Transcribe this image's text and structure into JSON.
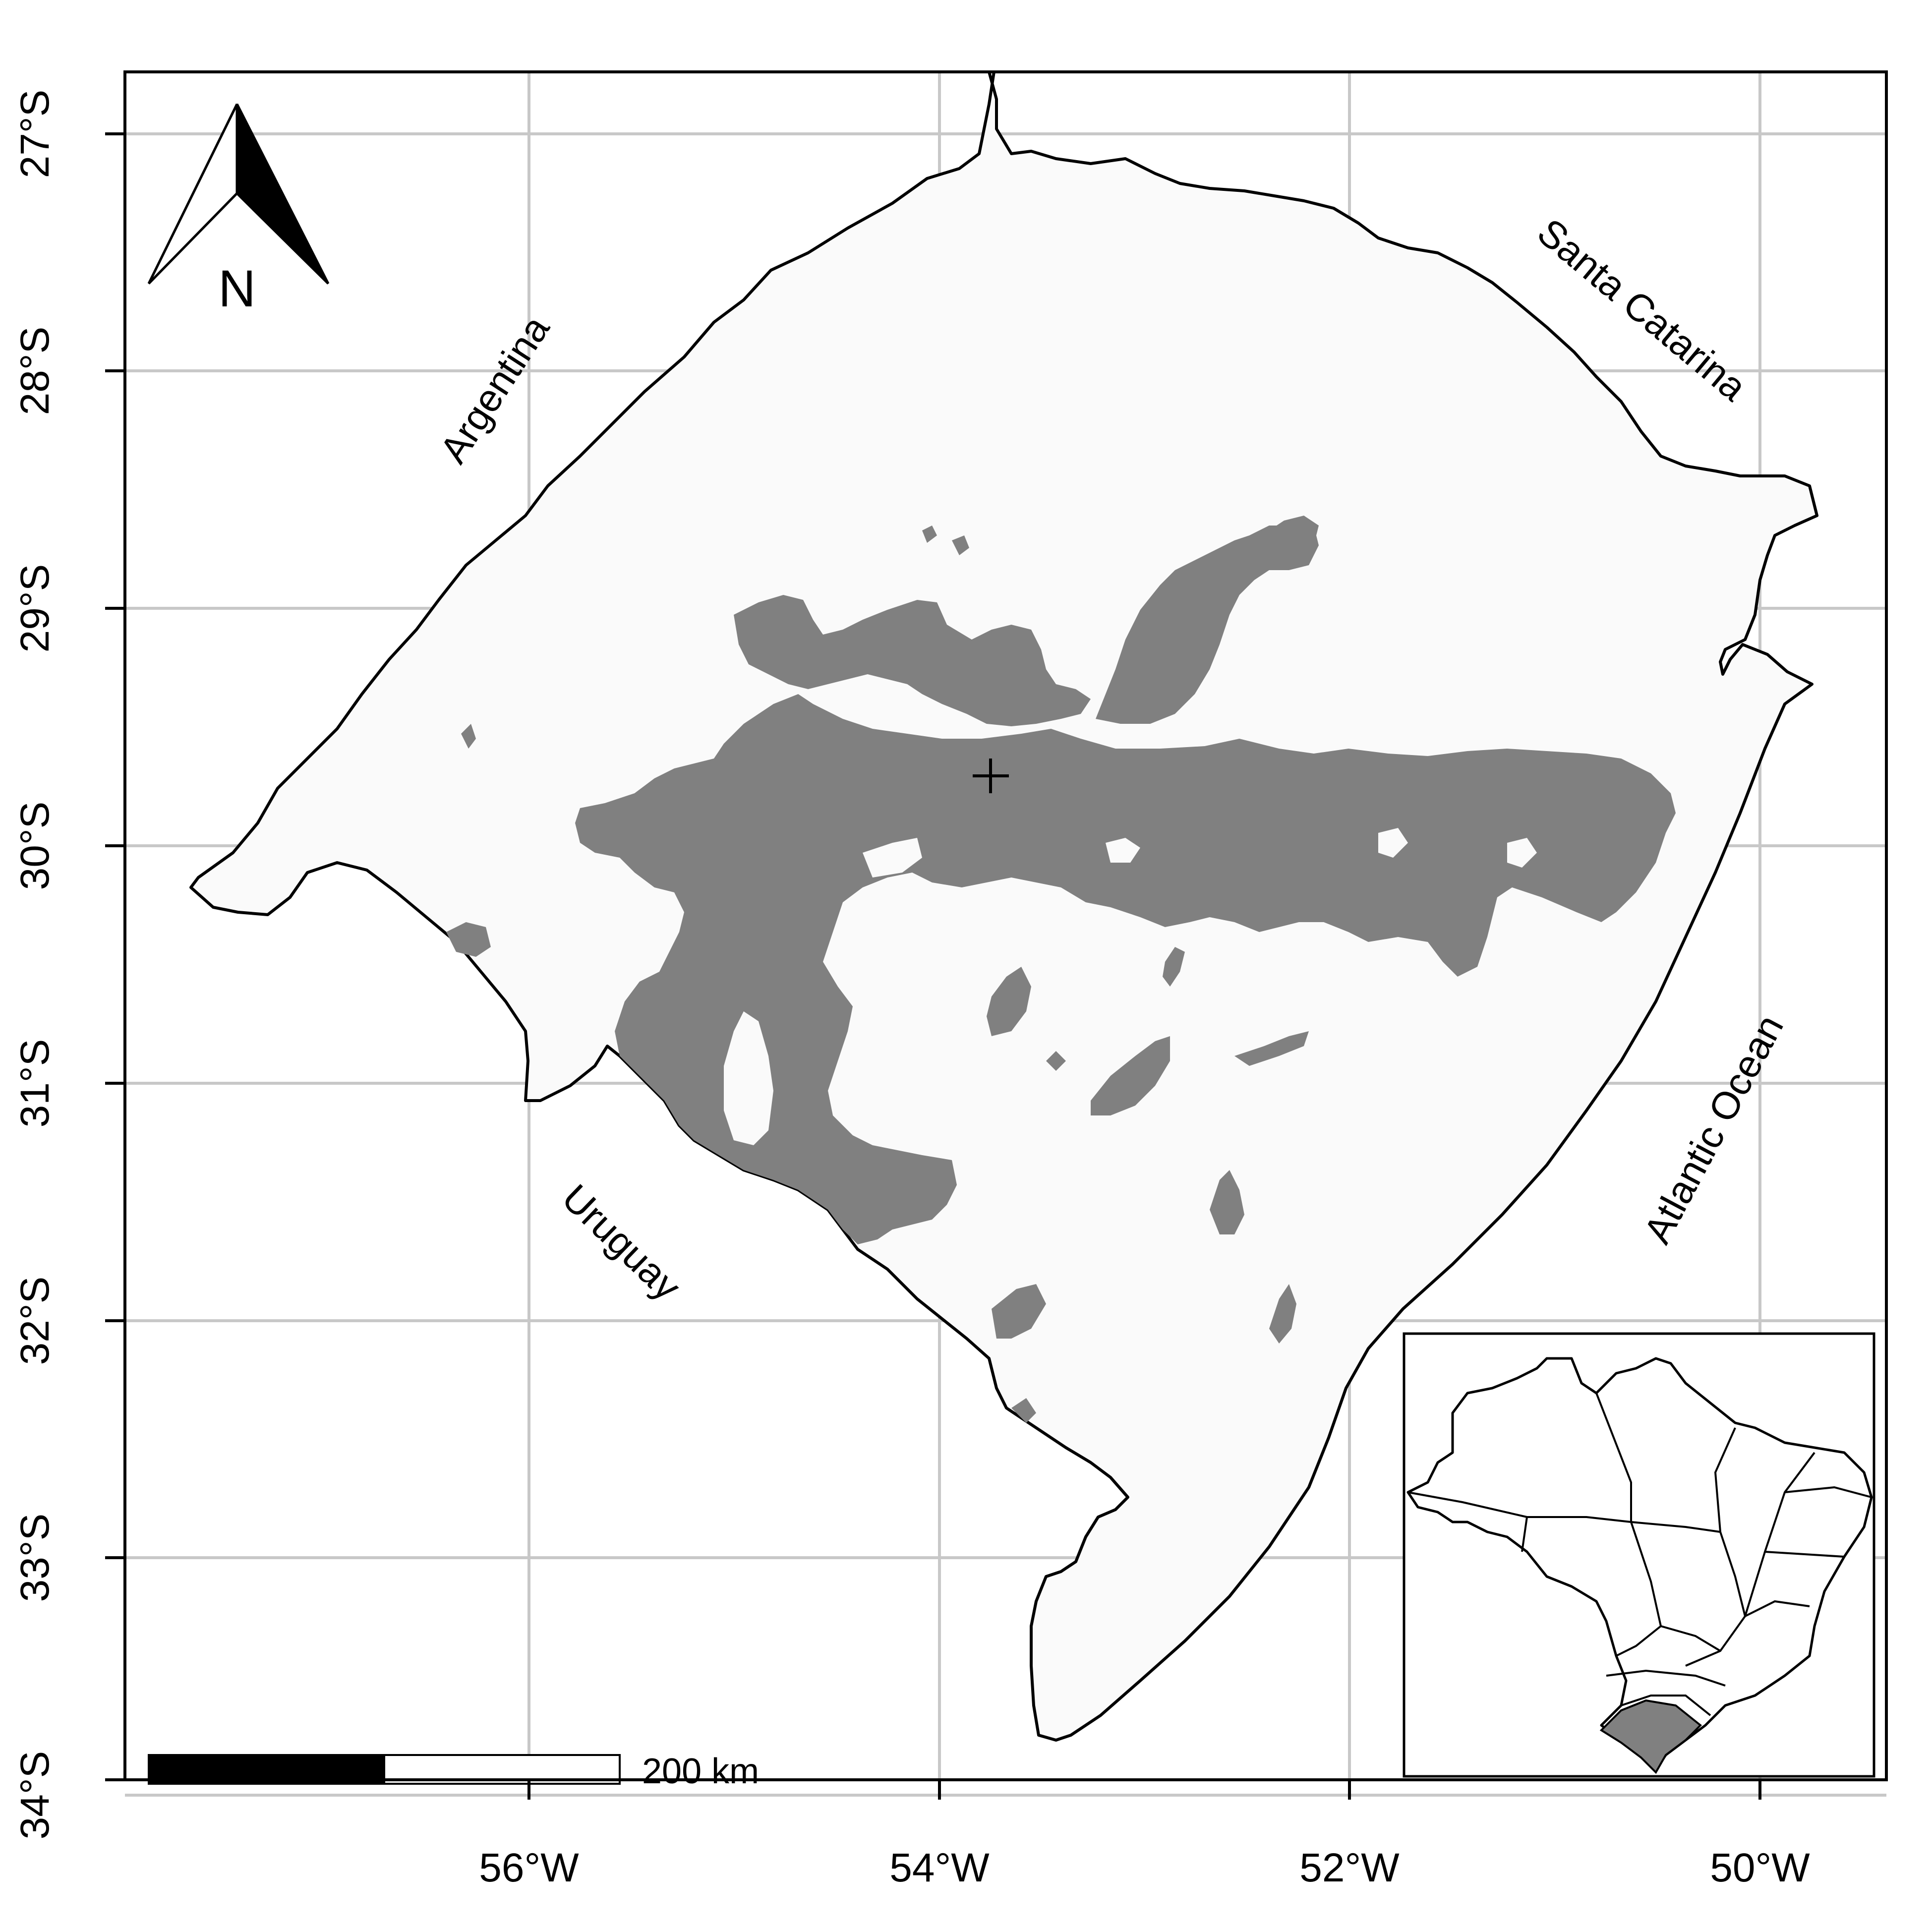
{
  "map": {
    "longitude_ticks": [
      "56°W",
      "54°W",
      "52°W",
      "50°W"
    ],
    "latitude_ticks": [
      "27°S",
      "28°S",
      "29°S",
      "30°S",
      "31°S",
      "32°S",
      "33°S",
      "34°S"
    ],
    "labels": {
      "argentina": "Argentina",
      "santa_catarina": "Santa Catarina",
      "uruguay": "Uruguay",
      "atlantic_ocean": "Atlantic Ocean"
    },
    "north_arrow_label": "N",
    "scale_bar_label": "200 km",
    "colors": {
      "land_fill": "#fafafa",
      "highlight_region": "#808080",
      "grid": "#c8c8c8",
      "outline": "#000000"
    }
  }
}
